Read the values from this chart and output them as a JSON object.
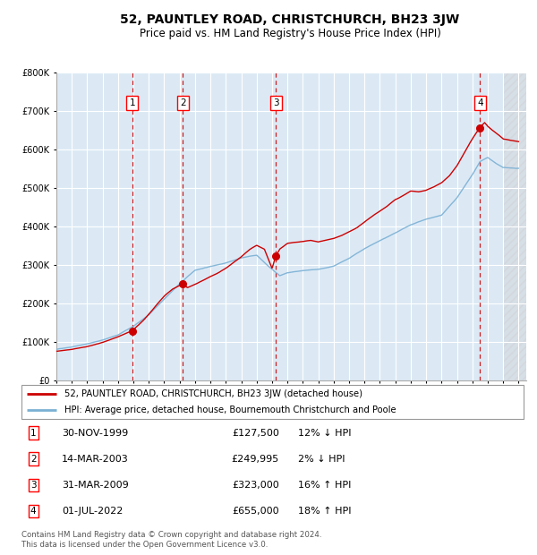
{
  "title": "52, PAUNTLEY ROAD, CHRISTCHURCH, BH23 3JW",
  "subtitle": "Price paid vs. HM Land Registry's House Price Index (HPI)",
  "legend_line1": "52, PAUNTLEY ROAD, CHRISTCHURCH, BH23 3JW (detached house)",
  "legend_line2": "HPI: Average price, detached house, Bournemouth Christchurch and Poole",
  "footer1": "Contains HM Land Registry data © Crown copyright and database right 2024.",
  "footer2": "This data is licensed under the Open Government Licence v3.0.",
  "transactions": [
    {
      "num": 1,
      "date": "30-NOV-1999",
      "price": 127500,
      "pct": "12%",
      "dir": "↓",
      "year": 1999.92
    },
    {
      "num": 2,
      "date": "14-MAR-2003",
      "price": 249995,
      "pct": "2%",
      "dir": "↓",
      "year": 2003.21
    },
    {
      "num": 3,
      "date": "31-MAR-2009",
      "price": 323000,
      "pct": "16%",
      "dir": "↑",
      "year": 2009.25
    },
    {
      "num": 4,
      "date": "01-JUL-2022",
      "price": 655000,
      "pct": "18%",
      "dir": "↑",
      "year": 2022.5
    }
  ],
  "red_line_color": "#cc0000",
  "blue_line_color": "#7ab0d4",
  "dot_color": "#cc0000",
  "vline_color": "#cc0000",
  "bg_color": "#dce9f5",
  "grid_color": "#ffffff",
  "ylim": [
    0,
    800000
  ],
  "xlim_start": 1995.0,
  "xlim_end": 2025.5,
  "yticks": [
    0,
    100000,
    200000,
    300000,
    400000,
    500000,
    600000,
    700000,
    800000
  ],
  "xticks": [
    1995,
    1996,
    1997,
    1998,
    1999,
    2000,
    2001,
    2002,
    2003,
    2004,
    2005,
    2006,
    2007,
    2008,
    2009,
    2010,
    2011,
    2012,
    2013,
    2014,
    2015,
    2016,
    2017,
    2018,
    2019,
    2020,
    2021,
    2022,
    2023,
    2024,
    2025
  ]
}
